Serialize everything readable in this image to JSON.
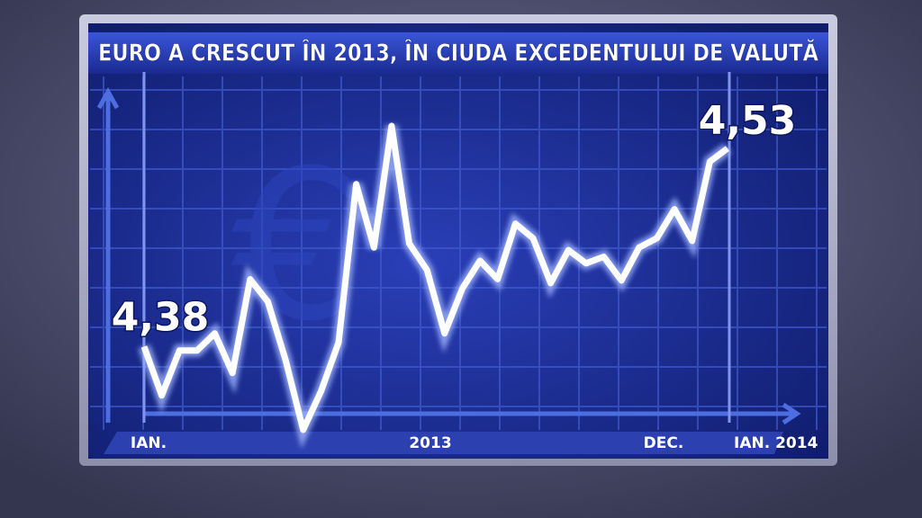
{
  "chart_data": {
    "type": "line",
    "title": "EURO A CRESCUT ÎN 2013, ÎN CIUDA EXCEDENTULUI DE VALUTĂ",
    "x_labels": [
      "IAN.",
      "2013",
      "DEC.",
      "IAN. 2014"
    ],
    "color": "#ffffff",
    "values": [
      4.38,
      4.343,
      4.377,
      4.377,
      4.39,
      4.36,
      4.431,
      4.414,
      4.37,
      4.317,
      4.346,
      4.383,
      4.503,
      4.455,
      4.547,
      4.458,
      4.438,
      4.39,
      4.424,
      4.445,
      4.431,
      4.473,
      4.462,
      4.428,
      4.453,
      4.443,
      4.448,
      4.43,
      4.455,
      4.462,
      4.484,
      4.46,
      4.52,
      4.53
    ],
    "value_labels": [
      "4,38",
      null,
      null,
      null,
      null,
      null,
      null,
      null,
      null,
      null,
      null,
      null,
      null,
      null,
      null,
      null,
      null,
      null,
      null,
      null,
      null,
      null,
      null,
      null,
      null,
      null,
      null,
      null,
      null,
      null,
      null,
      null,
      null,
      "4,53"
    ]
  }
}
